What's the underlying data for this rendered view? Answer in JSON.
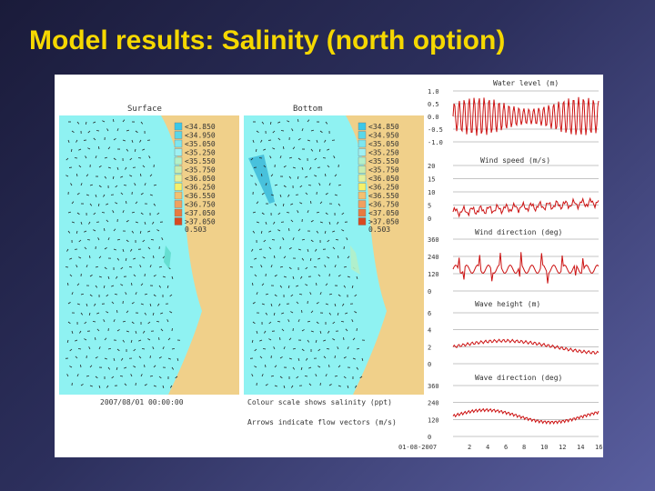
{
  "slide": {
    "title": "Model results: Salinity (north option)"
  },
  "maps": {
    "surface_title": "Surface",
    "bottom_title": "Bottom",
    "datetime": "2007/08/01 00:00:00",
    "caption_line1": "Colour scale shows salinity (ppt)",
    "caption_line2": "Arrows indicate flow vectors (m/s)",
    "legend": {
      "labels": [
        "<34.850",
        "<34.950",
        "<35.050",
        "<35.250",
        "<35.550",
        "<35.750",
        "<36.050",
        "<36.250",
        "<36.550",
        "<36.750",
        "<37.050",
        ">37.050"
      ],
      "colors": [
        "#3cc8e8",
        "#5ad8e8",
        "#7ee6ef",
        "#9ef0f2",
        "#b4f0c8",
        "#c8ecb0",
        "#e4f09c",
        "#f5f06a",
        "#f4c070",
        "#f0a060",
        "#e87a40",
        "#d84a20"
      ],
      "extra": "0.503"
    },
    "colors": {
      "sea": "#8ff2f2",
      "land": "#f0d08a"
    }
  },
  "panels": {
    "water_level": {
      "title": "Water level (m)",
      "ticks": [
        "1.0",
        "0.5",
        "0.0",
        "-0.5",
        "-1.0"
      ]
    },
    "wind_speed": {
      "title": "Wind speed (m/s)",
      "ticks": [
        "20",
        "15",
        "10",
        "5",
        "0"
      ]
    },
    "wind_direction": {
      "title": "Wind direction (deg)",
      "ticks": [
        "360",
        "240",
        "120",
        "0"
      ]
    },
    "wave_height": {
      "title": "Wave height (m)",
      "ticks": [
        "6",
        "4",
        "2",
        "0"
      ]
    },
    "wave_direction": {
      "title": "Wave direction (deg)",
      "ticks": [
        "360",
        "240",
        "120",
        "0"
      ]
    },
    "x_axis_labels": [
      "01-08-2007",
      "2",
      "4",
      "6",
      "8",
      "10",
      "12",
      "14",
      "16"
    ],
    "line_color": "#cc1111"
  }
}
